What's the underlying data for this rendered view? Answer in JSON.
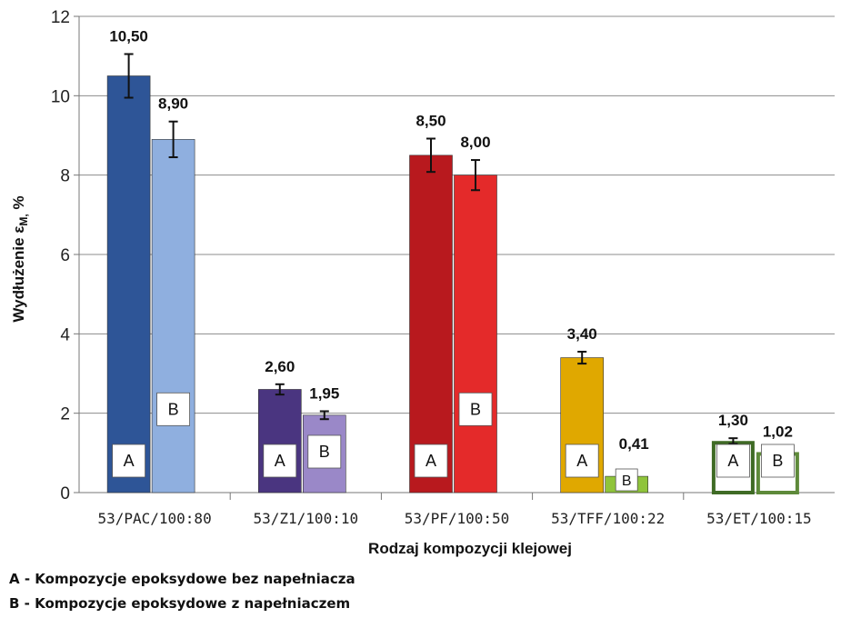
{
  "chart_data": {
    "type": "bar",
    "categories": [
      "53/PAC/100:80",
      "53/Z1/100:10",
      "53/PF/100:50",
      "53/TFF/100:22",
      "53/ET/100:15"
    ],
    "series": [
      {
        "name": "A",
        "values": [
          10.5,
          2.6,
          8.5,
          3.4,
          1.3
        ],
        "labels": [
          "10,50",
          "2,60",
          "8,50",
          "3,40",
          "1,30"
        ],
        "errors": [
          0.55,
          0.13,
          0.42,
          0.15,
          0.07
        ]
      },
      {
        "name": "B",
        "values": [
          8.9,
          1.95,
          8.0,
          0.41,
          1.02
        ],
        "labels": [
          "8,90",
          "1,95",
          "8,00",
          "0,41",
          "1,02"
        ],
        "errors": [
          0.45,
          0.1,
          0.38,
          0.0,
          0.07
        ]
      }
    ],
    "bar_colors": {
      "A": [
        "#2E5597",
        "#4A3580",
        "#B8191E",
        "#E0A800",
        "#3F6B25"
      ],
      "B": [
        "#8FAFDF",
        "#9A88C8",
        "#E42A2A",
        "#8FC43B",
        "#5E8A3A"
      ]
    },
    "bar_style": {
      "A": [
        "solid",
        "solid",
        "solid",
        "solid",
        "hollow"
      ],
      "B": [
        "solid",
        "solid",
        "solid",
        "solid",
        "hollow"
      ]
    },
    "xlabel": "Rodzaj kompozycji klejowej",
    "ylabel": "Wydłużenie ε",
    "ylabel_sub": "M,",
    "ylabel_unit": " %",
    "yticks": [
      0,
      2,
      4,
      6,
      8,
      10,
      12
    ],
    "ylim": [
      0,
      12
    ],
    "grid": true
  },
  "legend": [
    {
      "key": "A",
      "text": " - Kompozycje epoksydowe bez napełniacza"
    },
    {
      "key": "B",
      "text": " - Kompozycje epoksydowe z napełniaczem"
    }
  ]
}
